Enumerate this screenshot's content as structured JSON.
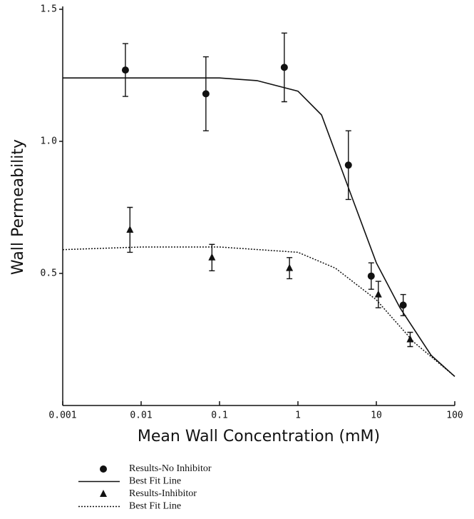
{
  "chart_data": {
    "type": "scatter",
    "x_label": "Mean Wall Concentration (mM)",
    "y_label": "Wall Permeability",
    "xscale": "log",
    "xlim": [
      0.001,
      100
    ],
    "xticks": [
      0.001,
      0.01,
      0.1,
      1,
      10,
      100
    ],
    "ylim": [
      0,
      1.5
    ],
    "yticks": [
      {
        "value": 0.5,
        "label": "0.5"
      },
      {
        "value": 1,
        "label": "1.0"
      },
      {
        "value": 1.5,
        "label": "1.5"
      }
    ],
    "series": [
      {
        "name": "Results-No Inhibitor",
        "mark": "circle",
        "color": "#111111",
        "x": [
          0.0063,
          0.067,
          0.67,
          4.4,
          8.6,
          22
        ],
        "values": [
          1.27,
          1.18,
          1.28,
          0.91,
          0.49,
          0.38
        ],
        "errors": [
          0.1,
          0.14,
          0.13,
          0.13,
          0.05,
          0.04
        ]
      },
      {
        "name": "Best Fit Line",
        "mark": "line",
        "dash": "solid",
        "color": "#111111",
        "x": [
          0.001,
          0.01,
          0.1,
          0.3,
          1,
          2,
          5,
          10,
          20,
          50,
          100
        ],
        "values": [
          1.24,
          1.24,
          1.24,
          1.23,
          1.19,
          1.1,
          0.78,
          0.54,
          0.37,
          0.19,
          0.11
        ]
      },
      {
        "name": "Results-Inhibitor",
        "mark": "triangle",
        "color": "#111111",
        "x": [
          0.0072,
          0.08,
          0.78,
          10.6,
          27
        ],
        "values": [
          0.665,
          0.56,
          0.52,
          0.42,
          0.25
        ],
        "errors": [
          0.085,
          0.05,
          0.04,
          0.05,
          0.027
        ]
      },
      {
        "name": "Best Fit Line",
        "mark": "line",
        "dash": "dotted",
        "color": "#111111",
        "x": [
          0.001,
          0.01,
          0.1,
          1,
          3,
          10,
          30,
          100
        ],
        "values": [
          0.59,
          0.6,
          0.6,
          0.58,
          0.52,
          0.4,
          0.24,
          0.11
        ]
      }
    ]
  }
}
